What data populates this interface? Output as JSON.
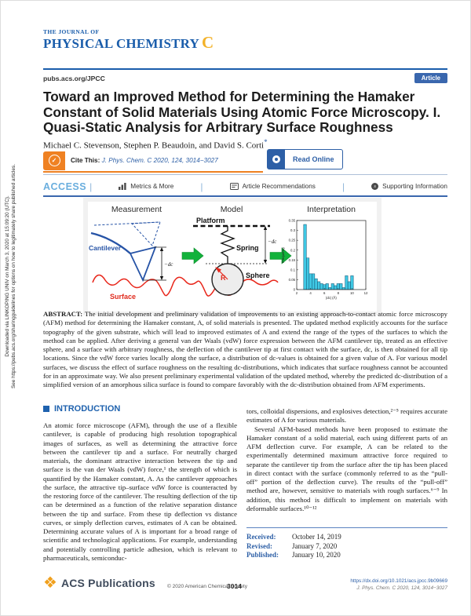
{
  "journal": {
    "masthead_top": "THE JOURNAL OF",
    "masthead_main": "PHYSICAL CHEMISTRY",
    "masthead_edition": "C",
    "site": "pubs.acs.org/JPCC",
    "badge": "Article"
  },
  "sidebar_note": {
    "line1": "Downloaded via LINKOPING UNIV on March 3, 2020 at 15:09:20 (UTC).",
    "line2": "See https://pubs.acs.org/sharingguidelines for options on how to legitimately share published articles."
  },
  "article": {
    "title": "Toward an Improved Method for Determining the Hamaker Constant of Solid Materials Using Atomic Force Microscopy. I. Quasi-Static Analysis for Arbitrary Surface Roughness",
    "authors": "Michael C. Stevenson, Stephen P. Beaudoin, and David S. Corti",
    "authors_mark": "*",
    "cite_label": "Cite This:",
    "cite_ref": "J. Phys. Chem. C 2020, 124, 3014−3027",
    "cite_check": "✓",
    "read_online": "Read Online"
  },
  "access_bar": {
    "access": "ACCESS",
    "metrics": "Metrics & More",
    "recommendations": "Article Recommendations",
    "supporting": "Supporting Information",
    "si_glyph": "s"
  },
  "figure": {
    "panels": [
      "Measurement",
      "Model",
      "Interpretation"
    ],
    "labels": {
      "cantilever": "Cantilever",
      "surface": "Surface",
      "platform": "Platform",
      "spring": "Spring",
      "sphere": "Sphere",
      "radius": "R",
      "deflection_meas": "−dc",
      "deflection_model": "−dc"
    }
  },
  "chart_data": {
    "type": "bar",
    "title": "",
    "xlabel": "|dc| (Å)",
    "ylabel": "Frequency",
    "xlim": [
      2,
      12
    ],
    "ylim": [
      0,
      0.35
    ],
    "xticks": [
      2,
      4,
      6,
      8,
      10,
      12
    ],
    "yticks": [
      0,
      0.05,
      0.1,
      0.15,
      0.2,
      0.25,
      0.3,
      0.35
    ],
    "bin_start": 3.0,
    "bin_width": 0.4,
    "values": [
      0.33,
      0.16,
      0.08,
      0.08,
      0.055,
      0.04,
      0.03,
      0.025,
      0.03,
      0.01,
      0.03,
      0.02,
      0.03,
      0.03,
      0.01,
      0.07,
      0.04,
      0.07
    ],
    "bar_color": "#3fc8e4",
    "bar_edge": "#14506e",
    "grid": false,
    "legend_position": "none"
  },
  "abstract": {
    "label": "ABSTRACT:",
    "text": "The initial development and preliminary validation of improvements to an existing approach-to-contact atomic force microscopy (AFM) method for determining the Hamaker constant, A, of solid materials is presented. The updated method explicitly accounts for the surface topography of the given substrate, which will lead to improved estimates of A and extend the range of the types of the surfaces to which the method can be applied. After deriving a general van der Waals (vdW) force expression between the AFM cantilever tip, treated as an effective sphere, and a surface with arbitrary roughness, the deflection of the cantilever tip at first contact with the surface, dc, is then obtained for all tip locations. Since the vdW force varies locally along the surface, a distribution of dc-values is obtained for a given value of A. For various model surfaces, we discuss the effect of surface roughness on the resulting dc-distributions, which indicates that surface roughness cannot be accounted for in an approximate way. We also present preliminary experimental validation of the updated method, whereby the predicted dc-distribution of a simplified version of an amorphous silica surface is found to compare favorably with the dc-distribution obtained from AFM experiments."
  },
  "introduction": {
    "heading": "INTRODUCTION",
    "col_left": "An atomic force microscope (AFM), through the use of a flexible cantilever, is capable of producing high resolution topographical images of surfaces, as well as determining the attractive force between the cantilever tip and a surface. For neutrally charged materials, the dominant attractive interaction between the tip and surface is the van der Waals (vdW) force,¹ the strength of which is quantified by the Hamaker constant, A. As the cantilever approaches the surface, the attractive tip–surface vdW force is counteracted by the restoring force of the cantilever. The resulting deflection of the tip can be determined as a function of the relative separation distance between the tip and surface. From these tip deflection vs distance curves, or simply deflection curves, estimates of A can be obtained. Determining accurate values of A is important for a broad range of scientific and technological applications. For example, understanding and potentially controlling particle adhesion, which is relevant to pharmaceuticals, semiconduc-",
    "col_right_p1": "tors, colloidal dispersions, and explosives detection,²⁻⁵ requires accurate estimates of A for various materials.",
    "col_right_p2": "Several AFM-based methods have been proposed to estimate the Hamaker constant of a solid material, each using different parts of an AFM deflection curve. For example, A can be related to the experimentally determined maximum attractive force required to separate the cantilever tip from the surface after the tip has been placed in direct contact with the surface (commonly referred to as the “pull-off” portion of the deflection curve). The results of the “pull-off” method are, however, sensitive to materials with rough surfaces.⁶⁻⁹ In addition, this method is difficult to implement on materials with deformable surfaces.¹⁰⁻¹²"
  },
  "dates": [
    {
      "label": "Received:",
      "value": "October 14, 2019"
    },
    {
      "label": "Revised:",
      "value": "January 7, 2020"
    },
    {
      "label": "Published:",
      "value": "January 10, 2020"
    }
  ],
  "footer": {
    "brand": "ACS Publications",
    "brand_glyph": "❖",
    "copyright": "© 2020 American Chemical Society",
    "page": "3014",
    "doi": "https://dx.doi.org/10.1021/acs.jpcc.9b09669",
    "citation": "J. Phys. Chem. C 2020, 124, 3014−3027"
  }
}
